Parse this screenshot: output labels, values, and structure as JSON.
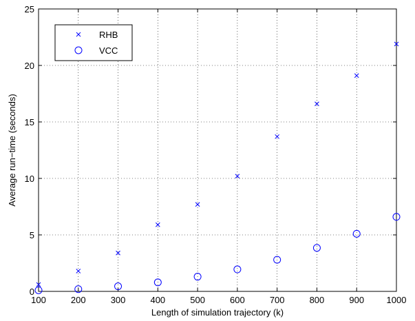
{
  "chart_data": {
    "type": "scatter",
    "xlabel": "Length of simulation trajectory (k)",
    "ylabel": "Average run−time (seconds)",
    "xlim": [
      100,
      1000
    ],
    "ylim": [
      0,
      25
    ],
    "xticks": [
      100,
      200,
      300,
      400,
      500,
      600,
      700,
      800,
      900,
      1000
    ],
    "yticks": [
      0,
      5,
      10,
      15,
      20,
      25
    ],
    "grid": true,
    "legend_position": "top-left",
    "x": [
      100,
      200,
      300,
      400,
      500,
      600,
      700,
      800,
      900,
      1000
    ],
    "series": [
      {
        "name": "RHB",
        "marker": "x",
        "color": "#0000ff",
        "values": [
          0.6,
          1.8,
          3.4,
          5.9,
          7.7,
          10.2,
          13.7,
          16.6,
          19.1,
          21.9
        ]
      },
      {
        "name": "VCC",
        "marker": "circle",
        "color": "#0000ff",
        "values": [
          0.1,
          0.2,
          0.45,
          0.8,
          1.3,
          1.95,
          2.8,
          3.85,
          5.1,
          6.6
        ]
      }
    ]
  }
}
